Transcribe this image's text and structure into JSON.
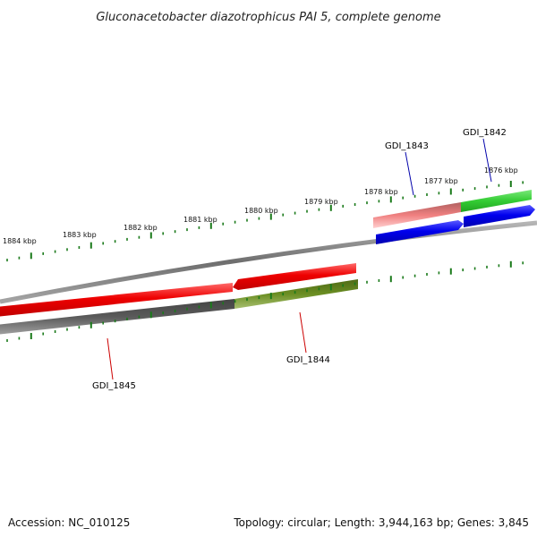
{
  "title": "Gluconacetobacter diazotrophicus PAI 5, complete genome",
  "footer": {
    "accession_label": "Accession:",
    "accession": "NC_010125",
    "topology_label": "Topology:",
    "topology": "circular",
    "length_label": "Length:",
    "length": "3,944,163 bp",
    "genes_label": "Genes:",
    "genes": "3,845"
  },
  "kbp_ticks": [
    {
      "label": "1876 kbp"
    },
    {
      "label": "1877 kbp"
    },
    {
      "label": "1878 kbp"
    },
    {
      "label": "1879 kbp"
    },
    {
      "label": "1880 kbp"
    },
    {
      "label": "1881 kbp"
    },
    {
      "label": "1882 kbp"
    },
    {
      "label": "1883 kbp"
    },
    {
      "label": "1884 kbp"
    }
  ],
  "genes": [
    {
      "name": "GDI_1842",
      "color": "#0000aa"
    },
    {
      "name": "GDI_1843",
      "color": "#0000aa"
    },
    {
      "name": "GDI_1844",
      "color": "#cc0000"
    },
    {
      "name": "GDI_1845",
      "color": "#cc0000"
    }
  ],
  "colors": {
    "tick": "#1a7a1a",
    "backbone": "#888888",
    "forward_gene": "#0000ee",
    "forward_cds": "#33cc33",
    "forward_cds_faded": "#f08080",
    "reverse_gene": "#ee0000",
    "reverse_cds": "#6b8e23",
    "reverse_cds_dark": "#555555"
  }
}
